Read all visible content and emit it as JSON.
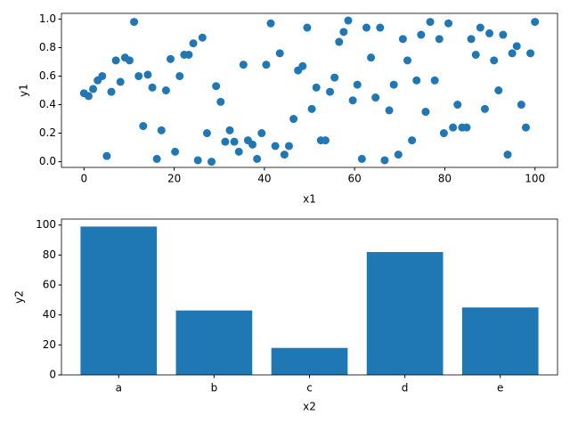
{
  "chart_data": [
    {
      "type": "scatter",
      "xlabel": "x1",
      "ylabel": "y1",
      "color": "#1f77b4",
      "x": [
        0,
        1.01,
        2.02,
        3.03,
        4.04,
        5.05,
        6.06,
        7.07,
        8.08,
        9.09,
        10.1,
        11.11,
        12.12,
        13.13,
        14.14,
        15.15,
        16.16,
        17.17,
        18.18,
        19.19,
        20.2,
        21.21,
        22.22,
        23.23,
        24.24,
        25.25,
        26.26,
        27.27,
        28.28,
        29.29,
        30.3,
        31.31,
        32.32,
        33.33,
        34.34,
        35.35,
        36.36,
        37.37,
        38.38,
        39.39,
        40.4,
        41.41,
        42.42,
        43.43,
        44.44,
        45.45,
        46.46,
        47.47,
        48.48,
        49.49,
        50.51,
        51.52,
        52.53,
        53.54,
        54.55,
        55.56,
        56.57,
        57.58,
        58.59,
        59.6,
        60.61,
        61.62,
        62.63,
        63.64,
        64.65,
        65.66,
        66.67,
        67.68,
        68.69,
        69.7,
        70.71,
        71.72,
        72.73,
        73.74,
        74.75,
        75.76,
        76.77,
        77.78,
        78.79,
        79.8,
        80.81,
        81.82,
        82.83,
        83.84,
        84.85,
        85.86,
        86.87,
        87.88,
        88.89,
        89.9,
        90.91,
        91.92,
        92.93,
        93.94,
        94.95,
        95.96,
        96.97,
        97.98,
        98.99,
        100
      ],
      "values": [
        0.48,
        0.46,
        0.51,
        0.57,
        0.6,
        0.04,
        0.49,
        0.71,
        0.56,
        0.73,
        0.71,
        0.98,
        0.6,
        0.25,
        0.61,
        0.52,
        0.02,
        0.22,
        0.5,
        0.72,
        0.07,
        0.6,
        0.75,
        0.75,
        0.83,
        0.01,
        0.87,
        0.2,
        0,
        0.53,
        0.42,
        0.14,
        0.22,
        0.14,
        0.07,
        0.68,
        0.15,
        0.12,
        0.02,
        0.2,
        0.68,
        0.97,
        0.11,
        0.76,
        0.05,
        0.11,
        0.3,
        0.64,
        0.67,
        0.94,
        0.37,
        0.52,
        0.15,
        0.15,
        0.49,
        0.59,
        0.84,
        0.91,
        0.99,
        0.43,
        0.54,
        0.02,
        0.94,
        0.73,
        0.45,
        0.94,
        0.01,
        0.36,
        0.54,
        0.05,
        0.86,
        0.71,
        0.15,
        0.57,
        0.89,
        0.35,
        0.98,
        0.57,
        0.86,
        0.2,
        0.97,
        0.24,
        0.4,
        0.24,
        0.24,
        0.86,
        0.75,
        0.94,
        0.37,
        0.9,
        0.71,
        0.5,
        0.89,
        0.05,
        0.76,
        0.81,
        0.4,
        0.24,
        0.76,
        0.98
      ],
      "xlim": [
        -5,
        105
      ],
      "ylim": [
        -0.04,
        1.04
      ],
      "xticks": [
        0,
        20,
        40,
        60,
        80,
        100
      ],
      "yticks": [
        {
          "value": 0,
          "label": "0.0"
        },
        0.2,
        0.4,
        0.6,
        0.8,
        {
          "value": 1,
          "label": "1.0"
        }
      ]
    },
    {
      "type": "bar",
      "xlabel": "x2",
      "ylabel": "y2",
      "color": "#1f77b4",
      "categories": [
        "a",
        "b",
        "c",
        "d",
        "e"
      ],
      "values": [
        99,
        43,
        18,
        82,
        45
      ],
      "ylim": [
        0,
        104
      ],
      "yticks": [
        0,
        20,
        40,
        60,
        80,
        100
      ]
    }
  ]
}
